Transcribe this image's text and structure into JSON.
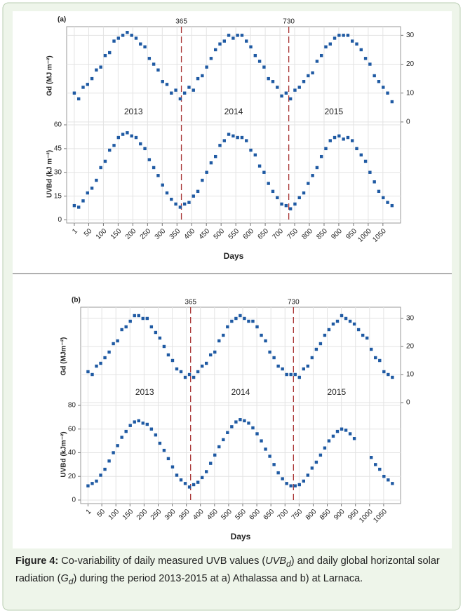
{
  "figure_labels": [
    "(a)",
    "(b)"
  ],
  "caption": {
    "label": "Figure 4:",
    "text1": " Co-variability of daily measured UVB values (",
    "sym1": "UVB",
    "sub1": "d",
    "text2": ") and daily global horizontal solar radiation (",
    "sym2": "G",
    "sub2": "d",
    "text3": ") during the period 2013-2015 at a) Athalassa and b) at Larnaca."
  },
  "chart_data": [
    {
      "type": "scatter",
      "y_label": "Gd (MJ m⁻²)",
      "y_axis_side": "right",
      "color": "#1f5aa3",
      "grid": true,
      "vlines": [
        365,
        730
      ],
      "vline_color": "#a83232",
      "annotations": [
        "2013",
        "2014",
        "2015"
      ],
      "xlim": [
        -25,
        1110
      ],
      "xticks": [
        1,
        50,
        100,
        150,
        200,
        250,
        300,
        350,
        400,
        450,
        500,
        550,
        600,
        650,
        700,
        750,
        800,
        850,
        900,
        950,
        1000,
        1050
      ],
      "ylim": [
        -1,
        33
      ],
      "yticks": [
        0,
        10,
        20,
        30
      ],
      "x": [
        1,
        16,
        31,
        46,
        61,
        76,
        91,
        106,
        121,
        136,
        151,
        166,
        181,
        196,
        211,
        226,
        241,
        256,
        271,
        286,
        301,
        316,
        331,
        346,
        361,
        376,
        391,
        406,
        421,
        436,
        451,
        466,
        481,
        496,
        511,
        526,
        541,
        556,
        571,
        586,
        601,
        616,
        631,
        646,
        661,
        676,
        691,
        706,
        721,
        736,
        751,
        766,
        781,
        796,
        811,
        826,
        841,
        856,
        871,
        886,
        901,
        916,
        931,
        946,
        961,
        976,
        991,
        1006,
        1021,
        1036,
        1051,
        1066,
        1081
      ],
      "values": [
        10,
        8,
        12,
        13,
        15,
        18,
        19,
        23,
        24,
        28,
        29,
        30,
        31,
        30,
        29,
        27,
        26,
        22,
        20,
        18,
        14,
        13,
        10,
        11,
        8,
        10,
        12,
        11,
        15,
        16,
        19,
        22,
        25,
        27,
        28,
        30,
        29,
        30,
        30,
        28,
        26,
        23,
        21,
        19,
        15,
        14,
        12,
        9,
        10,
        8,
        11,
        12,
        14,
        16,
        17,
        21,
        23,
        26,
        27,
        29,
        30,
        30,
        30,
        28,
        27,
        25,
        22,
        20,
        16,
        14,
        12,
        10,
        7
      ]
    },
    {
      "type": "scatter",
      "y_label": "UVBd (kJ m⁻²)",
      "y_axis_side": "left",
      "color": "#1f5aa3",
      "grid": true,
      "vlines": [
        365,
        730
      ],
      "vline_color": "#a83232",
      "x_label": "Days",
      "xlim": [
        -25,
        1110
      ],
      "xticks": [
        1,
        50,
        100,
        150,
        200,
        250,
        300,
        350,
        400,
        450,
        500,
        550,
        600,
        650,
        700,
        750,
        800,
        850,
        900,
        950,
        1000,
        1050
      ],
      "ylim": [
        -2,
        60
      ],
      "yticks": [
        0,
        15,
        30,
        45,
        60
      ],
      "x": [
        1,
        16,
        31,
        46,
        61,
        76,
        91,
        106,
        121,
        136,
        151,
        166,
        181,
        196,
        211,
        226,
        241,
        256,
        271,
        286,
        301,
        316,
        331,
        346,
        361,
        376,
        391,
        406,
        421,
        436,
        451,
        466,
        481,
        496,
        511,
        526,
        541,
        556,
        571,
        586,
        601,
        616,
        631,
        646,
        661,
        676,
        691,
        706,
        721,
        736,
        751,
        766,
        781,
        796,
        811,
        826,
        841,
        856,
        871,
        886,
        901,
        916,
        931,
        946,
        961,
        976,
        991,
        1006,
        1021,
        1036,
        1051,
        1066,
        1081
      ],
      "values": [
        9,
        8,
        12,
        17,
        20,
        25,
        33,
        37,
        44,
        47,
        52,
        54,
        55,
        53,
        52,
        48,
        45,
        38,
        33,
        28,
        22,
        17,
        13,
        10,
        8,
        10,
        11,
        15,
        18,
        25,
        30,
        36,
        40,
        47,
        50,
        54,
        53,
        52,
        52,
        50,
        44,
        41,
        34,
        30,
        23,
        18,
        14,
        10,
        9,
        7,
        10,
        14,
        17,
        23,
        28,
        33,
        40,
        45,
        50,
        52,
        53,
        51,
        52,
        50,
        45,
        41,
        37,
        30,
        24,
        18,
        14,
        11,
        9
      ]
    },
    {
      "type": "scatter",
      "y_label": "Gd (MJm⁻²)",
      "y_axis_side": "right",
      "color": "#1f5aa3",
      "grid": true,
      "vlines": [
        365,
        730
      ],
      "vline_color": "#a83232",
      "annotations": [
        "2013",
        "2014",
        "2015"
      ],
      "xlim": [
        -25,
        1110
      ],
      "xticks": [
        1,
        50,
        100,
        150,
        200,
        250,
        300,
        350,
        400,
        450,
        500,
        550,
        600,
        650,
        700,
        750,
        800,
        850,
        900,
        950,
        1000,
        1050
      ],
      "ylim": [
        -1,
        34
      ],
      "yticks": [
        0,
        10,
        20,
        30
      ],
      "x": [
        1,
        16,
        31,
        46,
        61,
        76,
        91,
        106,
        121,
        136,
        151,
        166,
        181,
        196,
        211,
        226,
        241,
        256,
        271,
        286,
        301,
        316,
        331,
        346,
        361,
        376,
        391,
        406,
        421,
        436,
        451,
        466,
        481,
        496,
        511,
        526,
        541,
        556,
        571,
        586,
        601,
        616,
        631,
        646,
        661,
        676,
        691,
        706,
        721,
        736,
        751,
        766,
        781,
        796,
        811,
        826,
        841,
        856,
        871,
        886,
        901,
        916,
        931,
        946,
        961,
        976,
        991,
        1006,
        1021,
        1036,
        1051,
        1066,
        1081
      ],
      "values": [
        11,
        10,
        13,
        14,
        16,
        18,
        21,
        22,
        26,
        27,
        29,
        31,
        31,
        30,
        30,
        27,
        25,
        23,
        20,
        17,
        15,
        12,
        11,
        9,
        10,
        9,
        11,
        13,
        14,
        17,
        18,
        22,
        24,
        27,
        29,
        30,
        31,
        30,
        29,
        29,
        27,
        24,
        22,
        18,
        16,
        13,
        12,
        10,
        10,
        10,
        9,
        12,
        13,
        16,
        19,
        21,
        24,
        26,
        28,
        29,
        31,
        30,
        29,
        28,
        26,
        24,
        23,
        19,
        16,
        15,
        11,
        10,
        9
      ]
    },
    {
      "type": "scatter",
      "y_label": "UVBd (kJm⁻²)",
      "y_axis_side": "left",
      "color": "#1f5aa3",
      "grid": true,
      "vlines": [
        365,
        730
      ],
      "vline_color": "#a83232",
      "x_label": "Days",
      "xlim": [
        -25,
        1110
      ],
      "xticks": [
        1,
        50,
        100,
        150,
        200,
        250,
        300,
        350,
        400,
        450,
        500,
        550,
        600,
        650,
        700,
        750,
        800,
        850,
        900,
        950,
        1000,
        1050
      ],
      "ylim": [
        -3,
        80
      ],
      "yticks": [
        0,
        20,
        40,
        60,
        80
      ],
      "x": [
        1,
        16,
        31,
        46,
        61,
        76,
        91,
        106,
        121,
        136,
        151,
        166,
        181,
        196,
        211,
        226,
        241,
        256,
        271,
        286,
        301,
        316,
        331,
        346,
        361,
        376,
        391,
        406,
        421,
        436,
        451,
        466,
        481,
        496,
        511,
        526,
        541,
        556,
        571,
        586,
        601,
        616,
        631,
        646,
        661,
        676,
        691,
        706,
        721,
        736,
        751,
        766,
        781,
        796,
        811,
        826,
        841,
        856,
        871,
        886,
        901,
        916,
        931,
        946,
        961,
        976,
        991,
        1006,
        1021,
        1036,
        1051,
        1066,
        1081
      ],
      "values": [
        12,
        14,
        16,
        21,
        26,
        33,
        40,
        46,
        53,
        58,
        63,
        66,
        67,
        65,
        64,
        60,
        55,
        48,
        42,
        35,
        28,
        21,
        17,
        14,
        11,
        13,
        15,
        19,
        24,
        31,
        38,
        45,
        51,
        57,
        62,
        66,
        68,
        67,
        65,
        61,
        56,
        50,
        43,
        37,
        30,
        23,
        18,
        14,
        12,
        12,
        13,
        16,
        21,
        27,
        32,
        38,
        44,
        50,
        54,
        58,
        60,
        59,
        56,
        52,
        null,
        null,
        null,
        36,
        30,
        26,
        20,
        17,
        14
      ]
    }
  ]
}
